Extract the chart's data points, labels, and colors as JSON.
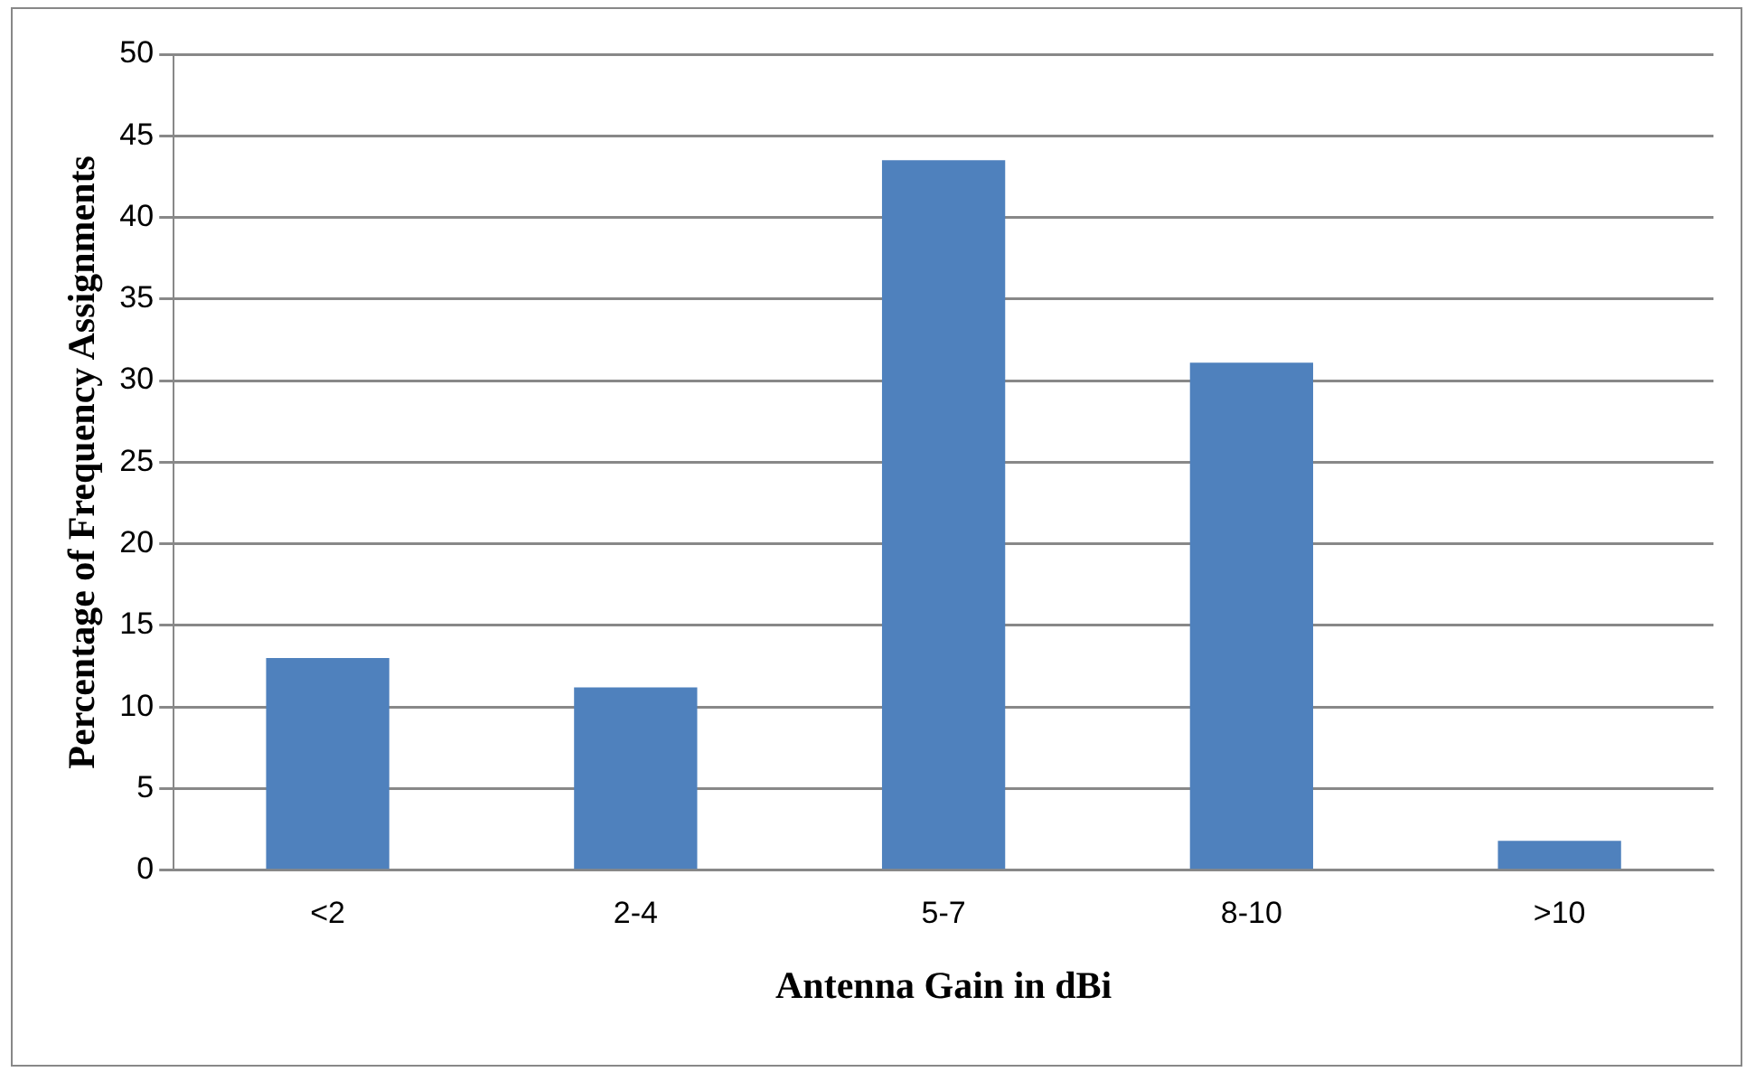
{
  "chart_data": {
    "type": "bar",
    "xlabel": "Antenna Gain in dBi",
    "ylabel": "Percentage of Frequency Assignments",
    "categories": [
      "<2",
      "2-4",
      "5-7",
      "8-10",
      ">10"
    ],
    "values": [
      13.0,
      11.2,
      43.5,
      31.1,
      1.8
    ],
    "color": "#4f81bd",
    "ylim": [
      0,
      50
    ],
    "yticks": [
      0,
      5,
      10,
      15,
      20,
      25,
      30,
      35,
      40,
      45,
      50
    ],
    "grid": "y",
    "legend": false
  }
}
